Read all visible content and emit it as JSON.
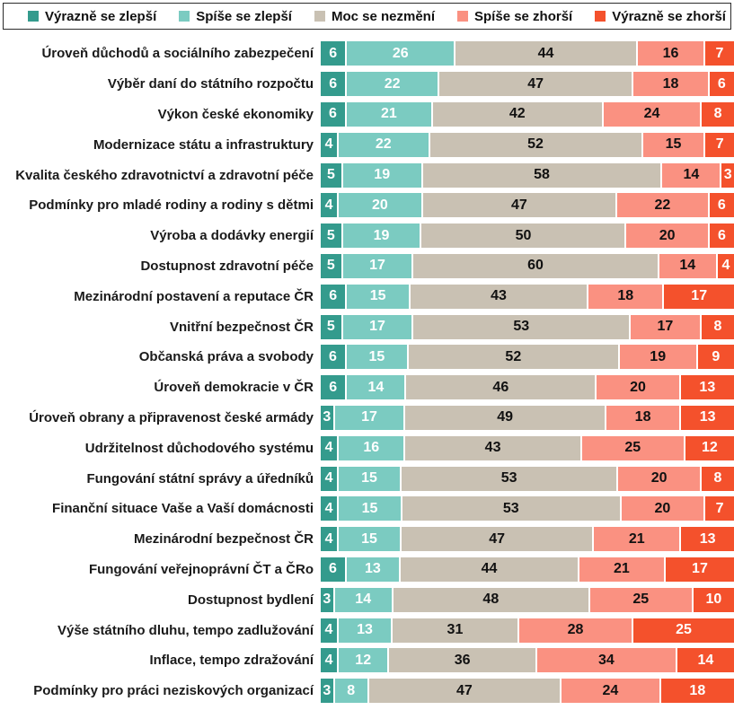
{
  "legend": {
    "items": [
      {
        "label": "Výrazně se zlepší",
        "color": "#349b8d"
      },
      {
        "label": "Spíše se zlepší",
        "color": "#7bcbc1"
      },
      {
        "label": "Moc se nezmění",
        "color": "#c9c1b3"
      },
      {
        "label": "Spíše se zhorší",
        "color": "#fa9181"
      },
      {
        "label": "Výrazně se zhorší",
        "color": "#f4512c"
      }
    ]
  },
  "chart_data": {
    "type": "bar",
    "orientation": "horizontal",
    "stacked": true,
    "unit": "percent",
    "xlim": [
      0,
      100
    ],
    "legend_position": "top",
    "series_names": [
      "Výrazně se zlepší",
      "Spíše se zlepší",
      "Moc se nezmění",
      "Spíše se zhorší",
      "Výrazně se zhorší"
    ],
    "series_keys": [
      "vyrazne-se-zlepsi",
      "spise-se-zlepsi",
      "moc-se-nezmeni",
      "spise-se-zhorsi",
      "vyrazne-se-zhorsi"
    ],
    "colors": [
      "#349b8d",
      "#7bcbc1",
      "#c9c1b3",
      "#fa9181",
      "#f4512c"
    ],
    "value_text_colors": [
      "#ffffff",
      "#ffffff",
      "#111111",
      "#111111",
      "#ffffff"
    ],
    "rows": [
      {
        "label": "Úroveň důchodů a sociálního zabezpečení",
        "values": [
          6,
          26,
          44,
          16,
          7
        ]
      },
      {
        "label": "Výběr daní do státního rozpočtu",
        "values": [
          6,
          22,
          47,
          18,
          6
        ]
      },
      {
        "label": "Výkon české ekonomiky",
        "values": [
          6,
          21,
          42,
          24,
          8
        ]
      },
      {
        "label": "Modernizace státu a infrastruktury",
        "values": [
          4,
          22,
          52,
          15,
          7
        ]
      },
      {
        "label": "Kvalita českého zdravotnictví a zdravotní péče",
        "values": [
          5,
          19,
          58,
          14,
          3
        ]
      },
      {
        "label": "Podmínky pro mladé rodiny a rodiny s dětmi",
        "values": [
          4,
          20,
          47,
          22,
          6
        ]
      },
      {
        "label": "Výroba a dodávky energií",
        "values": [
          5,
          19,
          50,
          20,
          6
        ]
      },
      {
        "label": "Dostupnost zdravotní péče",
        "values": [
          5,
          17,
          60,
          14,
          4
        ]
      },
      {
        "label": "Mezinárodní postavení a reputace ČR",
        "values": [
          6,
          15,
          43,
          18,
          17
        ]
      },
      {
        "label": "Vnitřní bezpečnost ČR",
        "values": [
          5,
          17,
          53,
          17,
          8
        ]
      },
      {
        "label": "Občanská práva a svobody",
        "values": [
          6,
          15,
          52,
          19,
          9
        ]
      },
      {
        "label": "Úroveň demokracie v ČR",
        "values": [
          6,
          14,
          46,
          20,
          13
        ]
      },
      {
        "label": "Úroveň obrany a připravenost české armády",
        "values": [
          3,
          17,
          49,
          18,
          13
        ]
      },
      {
        "label": "Udržitelnost důchodového systému",
        "values": [
          4,
          16,
          43,
          25,
          12
        ]
      },
      {
        "label": "Fungování státní správy a úředníků",
        "values": [
          4,
          15,
          53,
          20,
          8
        ]
      },
      {
        "label": "Finanční situace Vaše a Vaší domácnosti",
        "values": [
          4,
          15,
          53,
          20,
          7
        ]
      },
      {
        "label": "Mezinárodní bezpečnost ČR",
        "values": [
          4,
          15,
          47,
          21,
          13
        ]
      },
      {
        "label": "Fungování veřejnoprávní ČT a ČRo",
        "values": [
          6,
          13,
          44,
          21,
          17
        ]
      },
      {
        "label": "Dostupnost bydlení",
        "values": [
          3,
          14,
          48,
          25,
          10
        ]
      },
      {
        "label": "Výše státního dluhu, tempo zadlužování",
        "values": [
          4,
          13,
          31,
          28,
          25
        ]
      },
      {
        "label": "Inflace, tempo zdražování",
        "values": [
          4,
          12,
          36,
          34,
          14
        ]
      },
      {
        "label": "Podmínky pro práci neziskových organizací",
        "values": [
          3,
          8,
          47,
          24,
          18
        ]
      }
    ]
  }
}
